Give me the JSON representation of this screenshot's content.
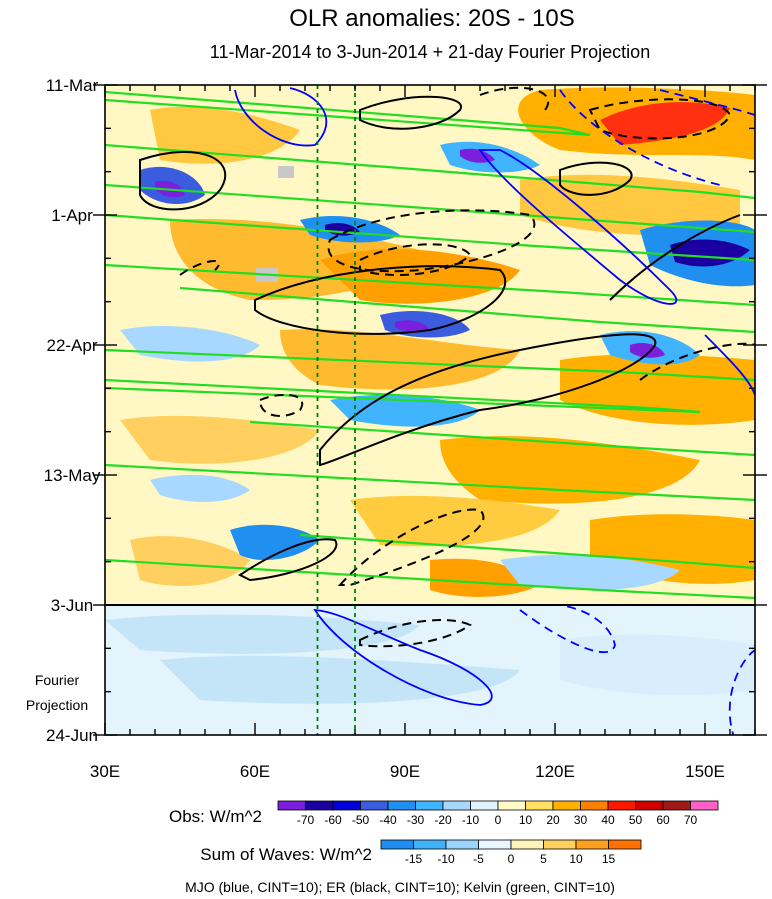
{
  "chart_data": {
    "type": "heatmap",
    "title": "OLR anomalies: 20S - 10S",
    "subtitle": "11-Mar-2014 to 3-Jun-2014 + 21-day Fourier Projection",
    "xlabel": "",
    "ylabel": "",
    "x_ticks": [
      "30E",
      "60E",
      "90E",
      "120E",
      "150E"
    ],
    "x_tick_values": [
      30,
      60,
      90,
      120,
      150
    ],
    "xlim": [
      30,
      160
    ],
    "y_ticks": [
      "11-Mar",
      "1-Apr",
      "22-Apr",
      "13-May",
      "3-Jun",
      "24-Jun"
    ],
    "y_tick_values": [
      "2014-03-11",
      "2014-04-01",
      "2014-04-22",
      "2014-05-13",
      "2014-06-03",
      "2014-06-24"
    ],
    "ylim": [
      "2014-03-11",
      "2014-06-24"
    ],
    "y_inverted": true,
    "observation_end": "2014-06-03",
    "projection_label": "Fourier\nProjection",
    "reference_longitudes": [
      72.5,
      80
    ],
    "obs_colorbar": {
      "label": "Obs: W/m^2",
      "levels": [
        -70,
        -60,
        -50,
        -40,
        -30,
        -20,
        -10,
        0,
        10,
        20,
        30,
        40,
        50,
        60,
        70
      ],
      "colors": [
        "#7a1fdc",
        "#1a00a0",
        "#0000d8",
        "#3c5ce0",
        "#2090f0",
        "#40b4ff",
        "#a8d8ff",
        "#e0f4ff",
        "#fffcc8",
        "#ffe060",
        "#ffb000",
        "#ff8000",
        "#ff1800",
        "#d00000",
        "#a01818",
        "#ff60c8"
      ]
    },
    "wave_colorbar": {
      "label": "Sum of Waves: W/m^2",
      "levels": [
        -15,
        -10,
        -5,
        0,
        5,
        10,
        15
      ],
      "colors": [
        "#1e8cf0",
        "#40b0f8",
        "#98d4fc",
        "#e8f6ff",
        "#fff4b8",
        "#ffd060",
        "#ffa020",
        "#ff7000"
      ]
    },
    "contours": [
      {
        "name": "MJO",
        "color": "#0000ff",
        "cint": 10
      },
      {
        "name": "ER",
        "color": "#000000",
        "cint": 10
      },
      {
        "name": "Kelvin",
        "color": "#00dd00",
        "cint": 10
      }
    ],
    "footer": "MJO (blue, CINT=10); ER (black, CINT=10); Kelvin (green, CINT=10)"
  }
}
